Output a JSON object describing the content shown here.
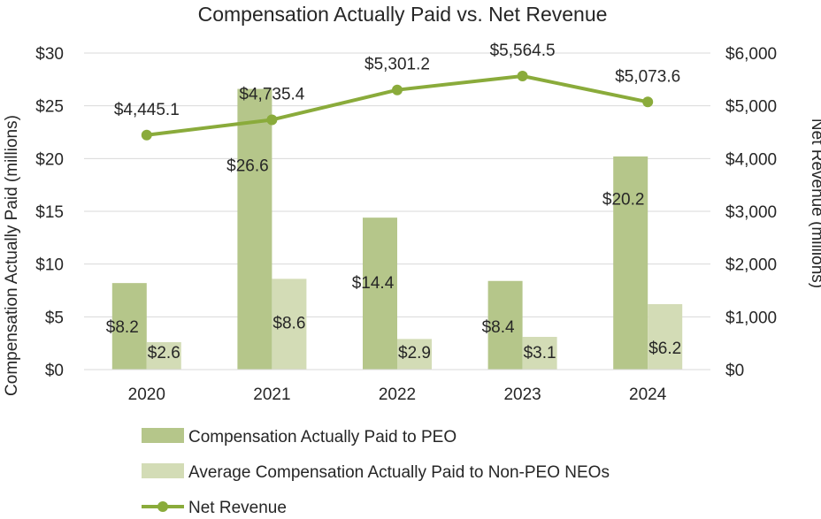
{
  "chart_data": {
    "type": "bar",
    "title": "Compensation Actually Paid vs. Net Revenue",
    "categories": [
      "2020",
      "2021",
      "2022",
      "2023",
      "2024"
    ],
    "ylabel": "Compensation Actually Paid (millions)",
    "y2label": "Net Revenue (millions)",
    "ylim": [
      0,
      30
    ],
    "y2lim": [
      0,
      6000
    ],
    "yticks": [
      "$0",
      "$5",
      "$10",
      "$15",
      "$20",
      "$25",
      "$30"
    ],
    "y2ticks": [
      "$0",
      "$1,000",
      "$2,000",
      "$3,000",
      "$4,000",
      "$5,000",
      "$6,000"
    ],
    "grid": true,
    "legend_position": "bottom",
    "series": [
      {
        "name": "Compensation Actually Paid to PEO",
        "kind": "bar",
        "axis": "left",
        "color": "#b5c68a",
        "values": [
          8.2,
          26.6,
          14.4,
          8.4,
          20.2
        ],
        "labels": [
          "$8.2",
          "$26.6",
          "$14.4",
          "$8.4",
          "$20.2"
        ]
      },
      {
        "name": "Average Compensation Actually Paid to Non-PEO NEOs",
        "kind": "bar",
        "axis": "left",
        "color": "#d3dcb6",
        "values": [
          2.6,
          8.6,
          2.9,
          3.1,
          6.2
        ],
        "labels": [
          "$2.6",
          "$8.6",
          "$2.9",
          "$3.1",
          "$6.2"
        ]
      },
      {
        "name": "Net Revenue",
        "kind": "line",
        "axis": "right",
        "color": "#8aab3b",
        "values": [
          4445.1,
          4735.4,
          5301.2,
          5564.5,
          5073.6
        ],
        "labels": [
          "$4,445.1",
          "$4,735.4",
          "$5,301.2",
          "$5,564.5",
          "$5,073.6"
        ]
      }
    ]
  }
}
